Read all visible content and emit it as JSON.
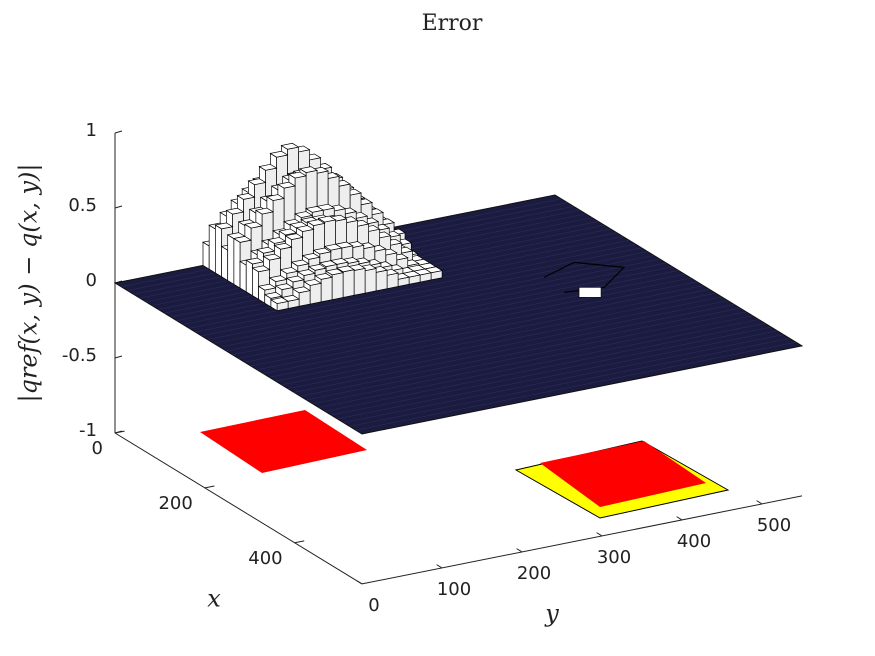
{
  "chart_data": {
    "type": "surface3d",
    "title": "Error",
    "xlabel": "x",
    "ylabel": "y",
    "zlabel": "|qref(x, y) − q(x, y)|",
    "xlim": [
      0,
      550
    ],
    "ylim": [
      0,
      550
    ],
    "zlim": [
      -1,
      1
    ],
    "xticks": [
      0,
      200,
      400
    ],
    "yticks": [
      0,
      100,
      200,
      300,
      400,
      500
    ],
    "zticks": [
      -1,
      -0.5,
      0,
      0.5,
      1
    ]
  }
}
